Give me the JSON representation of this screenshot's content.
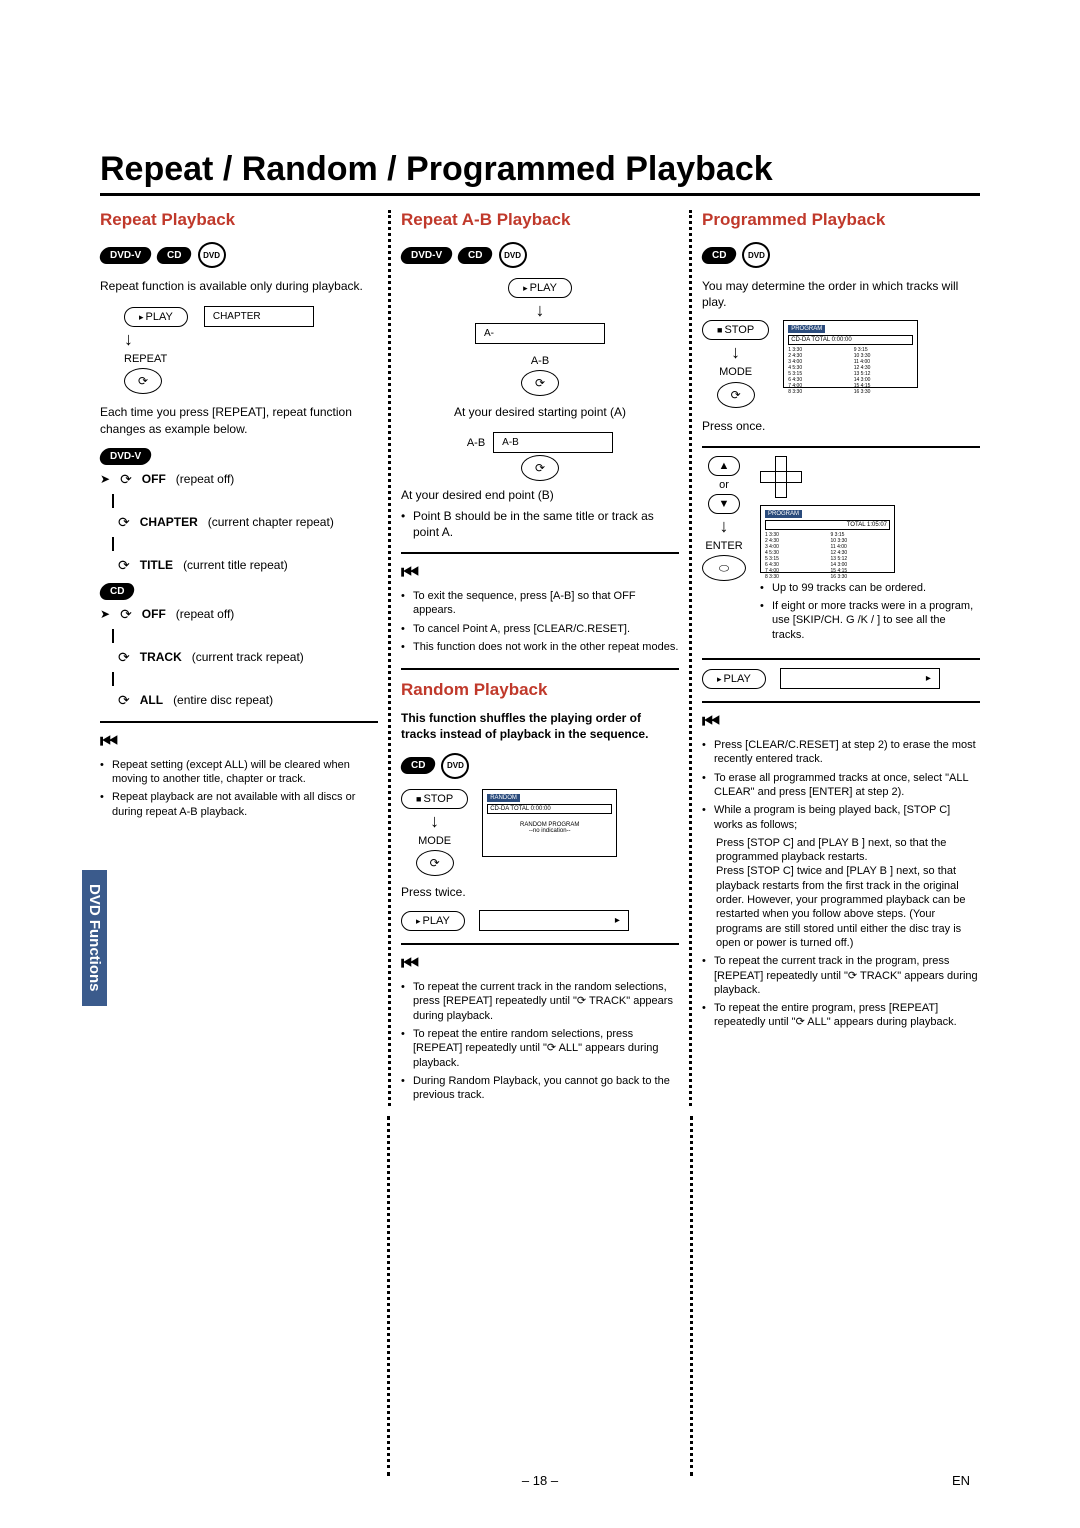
{
  "page": {
    "title": "Repeat / Random / Programmed Playback",
    "number": "– 18 –",
    "lang_code": "EN",
    "side_tab": "DVD Functions"
  },
  "badges": {
    "dvdv": "DVD-V",
    "cd": "CD",
    "dvd_disc": "DVD"
  },
  "common": {
    "play": "PLAY",
    "stop": "STOP",
    "mode": "MODE",
    "enter": "ENTER",
    "repeat_btn": "REPEAT",
    "press_once": "Press once.",
    "press_twice": "Press twice.",
    "rewind_label": "Hint"
  },
  "repeat": {
    "title": "Repeat Playback",
    "intro": "Repeat function is available only during playback.",
    "chapter_box": "CHAPTER",
    "each_time": "Each time you press [REPEAT], repeat function changes as example below.",
    "rows": {
      "off1": {
        "label": "OFF",
        "desc": "(repeat off)"
      },
      "chapter": {
        "label": "CHAPTER",
        "desc": "(current chapter repeat)"
      },
      "title": {
        "label": "TITLE",
        "desc": "(current title repeat)"
      },
      "off2": {
        "label": "OFF",
        "desc": "(repeat off)"
      },
      "track": {
        "label": "TRACK",
        "desc": "(current track repeat)"
      },
      "all": {
        "label": "ALL",
        "desc": "(entire disc repeat)"
      }
    },
    "notes": [
      "Repeat setting (except ALL) will be cleared when moving to another title, chapter or track.",
      "Repeat playback are not available with all discs or during repeat A-B playback."
    ]
  },
  "ab": {
    "title": "Repeat A-B Playback",
    "box_a": "A-",
    "label_ab": "A-B",
    "box_ab": "A-B",
    "line1": "At your desired starting point (A)",
    "line2": "At your desired end point (B)",
    "bullet1": "Point B should be in the same title or track as point A.",
    "notes": [
      "To exit the sequence, press [A-B] so that OFF appears.",
      "To cancel Point A, press [CLEAR/C.RESET].",
      "This function does not work in the other repeat modes."
    ]
  },
  "random": {
    "title": "Random Playback",
    "intro": "This function shuffles the playing order of tracks instead of playback in the sequence.",
    "screen_title": "RANDOM",
    "screen_sub1": "CD-DA        TOTAL 0:00:00",
    "screen_sub2": "RANDOM PROGRAM",
    "screen_sub3": "--no indication--",
    "notes": [
      "To repeat the current track in the random selections, press [REPEAT] repeatedly until \"⟳ TRACK\" appears during playback.",
      "To repeat the entire random selections, press [REPEAT] repeatedly until \"⟳ ALL\" appears during playback.",
      "During Random Playback, you cannot go back to the previous track."
    ]
  },
  "prog": {
    "title": "Programmed Playback",
    "intro": "You may determine the order in which tracks will play.",
    "screen_hdr": "PROGRAM",
    "screen_line": "CD-DA        TOTAL 0:00:00",
    "screen_total2": "TOTAL 1:05:07",
    "up_to": "Up to 99 tracks can be ordered.",
    "if_eight": "If eight or more tracks were in a program, use [SKIP/CH. G /K  / ] to see all the tracks.",
    "notes": [
      "Press [CLEAR/C.RESET] at step 2) to erase the most recently entered track.",
      "To erase all programmed tracks at once, select \"ALL CLEAR\" and press [ENTER] at step 2).",
      "While a program is being played back, [STOP C] works as follows;"
    ],
    "sub_notes": [
      "Press [STOP C] and [PLAY B ] next, so that the programmed playback restarts.",
      "Press [STOP C] twice and [PLAY B ] next, so that playback restarts from the first track in the original order. However, your programmed playback can be restarted when you follow above steps. (Your programs are still stored until either the disc tray is open or power is turned off.)"
    ],
    "notes2": [
      "To repeat the current track in the program, press [REPEAT] repeatedly until \"⟳ TRACK\" appears during playback.",
      "To repeat the entire program, press [REPEAT] repeatedly until \"⟳ ALL\" appears during playback."
    ],
    "track_list": [
      "1  3:30",
      "2  4:30",
      "3  4:00",
      "4  5:30",
      "5  3:15",
      "6  4:30",
      "7  4:00",
      "8  3:30"
    ],
    "track_list_r": [
      "9  3:15",
      "10  3:30",
      "11  4:00",
      "12  4:30",
      "13  5:12",
      "14  3:00",
      "15  4:15",
      "16  3:30"
    ]
  }
}
